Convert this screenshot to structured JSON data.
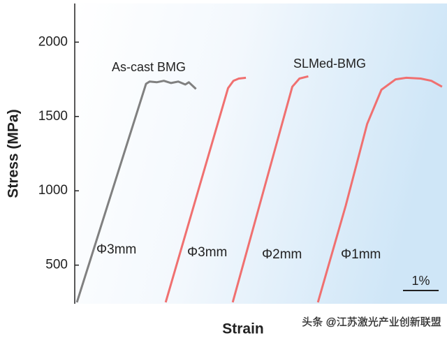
{
  "chart_data": {
    "type": "line",
    "xlabel": "Strain",
    "ylabel": "Stress (MPa)",
    "xlim": [
      0,
      10.4
    ],
    "ylim": [
      240,
      2260
    ],
    "yticks": [
      500,
      1000,
      1500,
      2000
    ],
    "series": [
      {
        "name": "Φ3mm",
        "color": "#808080",
        "x": [
          0.06,
          2.0,
          2.1,
          2.3,
          2.5,
          2.7,
          2.9,
          3.1,
          3.2,
          3.4
        ],
        "values": [
          250,
          1720,
          1735,
          1730,
          1740,
          1725,
          1735,
          1715,
          1730,
          1685
        ]
      },
      {
        "name": "Φ3mm",
        "color": "#f07070",
        "x": [
          2.55,
          4.3,
          4.45,
          4.6,
          4.8
        ],
        "values": [
          250,
          1690,
          1740,
          1755,
          1760
        ]
      },
      {
        "name": "Φ2mm",
        "color": "#f07070",
        "x": [
          4.43,
          6.1,
          6.3,
          6.55
        ],
        "values": [
          250,
          1700,
          1755,
          1770
        ]
      },
      {
        "name": "Φ1mm",
        "color": "#f07070",
        "x": [
          6.82,
          7.6,
          8.2,
          8.6,
          9.0,
          9.3,
          9.7,
          10.0,
          10.3
        ],
        "values": [
          250,
          900,
          1450,
          1680,
          1750,
          1760,
          1755,
          1740,
          1700
        ]
      }
    ],
    "annotations": [
      "As-cast BMG",
      "SLMed-BMG"
    ],
    "scale_bar": {
      "value": 1,
      "label": "1%"
    },
    "watermark": "头条 @江苏激光产业创新联盟"
  }
}
